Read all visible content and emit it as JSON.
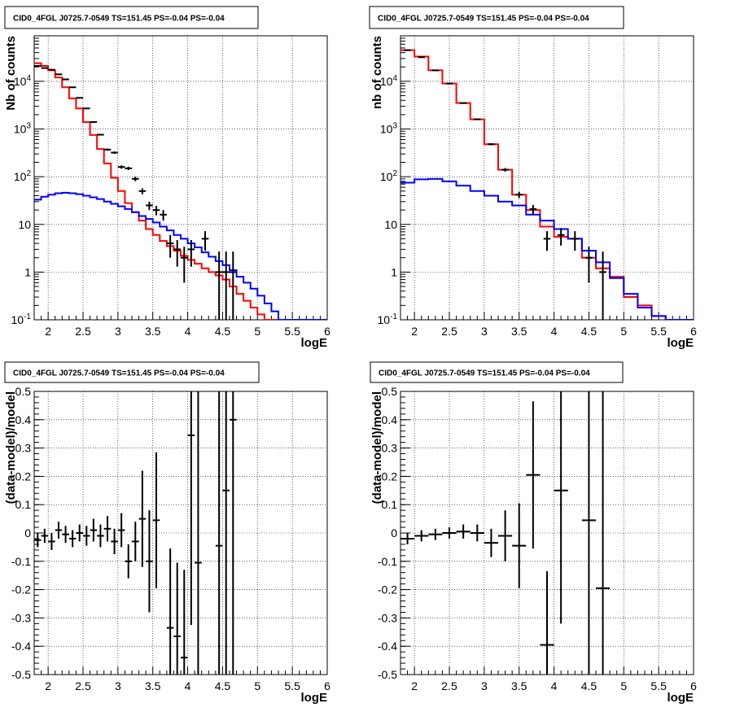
{
  "chart_data": [
    {
      "type": "line",
      "title": "CID0_4FGL J0725.7-0549 TS=151.45 PS=-0.04 PS=-0.04",
      "xlabel": "logE",
      "ylabel": "Nb of counts",
      "xlim": [
        1.8,
        6.0
      ],
      "ylim": [
        0.1,
        90000
      ],
      "yscale": "log",
      "grid": true,
      "x_ticks": [
        "2",
        "2.5",
        "3",
        "3.5",
        "4",
        "4.5",
        "5",
        "5.5",
        "6"
      ],
      "y_ticks": [
        "10^-1",
        "1",
        "10",
        "10^2",
        "10^3",
        "10^4"
      ],
      "series": [
        {
          "color": "#ff0000",
          "style": "step",
          "edges": [
            1.8,
            1.9,
            2.0,
            2.1,
            2.2,
            2.3,
            2.4,
            2.5,
            2.6,
            2.7,
            2.8,
            2.9,
            3.0,
            3.1,
            3.2,
            3.3,
            3.4,
            3.5,
            3.6,
            3.7,
            3.8,
            3.9,
            4.0,
            4.1,
            4.2,
            4.3,
            4.4,
            4.5,
            4.6,
            4.7,
            4.8,
            4.9,
            5.0,
            5.1,
            5.2,
            5.3,
            5.4,
            5.5,
            5.6,
            5.7,
            5.8,
            5.9,
            6.0
          ],
          "values": [
            24000,
            21000,
            17000,
            12000,
            7500,
            4400,
            2700,
            1400,
            750,
            380,
            190,
            95,
            50,
            28,
            18,
            12,
            8,
            6,
            4.5,
            3.5,
            2.8,
            2.2,
            1.8,
            1.5,
            1.2,
            1.0,
            0.85,
            0.7,
            0.5,
            0.35,
            0.25,
            0.18,
            0.13,
            0.1,
            0.1,
            0.1,
            0.1,
            0.1,
            0.1,
            0.1,
            0.1,
            0.1
          ]
        },
        {
          "color": "#0000ff",
          "style": "step",
          "edges": [
            1.8,
            1.9,
            2.0,
            2.1,
            2.2,
            2.3,
            2.4,
            2.5,
            2.6,
            2.7,
            2.8,
            2.9,
            3.0,
            3.1,
            3.2,
            3.3,
            3.4,
            3.5,
            3.6,
            3.7,
            3.8,
            3.9,
            4.0,
            4.1,
            4.2,
            4.3,
            4.4,
            4.5,
            4.6,
            4.7,
            4.8,
            4.9,
            5.0,
            5.1,
            5.2,
            5.3,
            5.4,
            5.5,
            5.6,
            5.7,
            5.8,
            5.9,
            6.0
          ],
          "values": [
            33,
            38,
            42,
            45,
            46,
            45,
            43,
            40,
            37,
            34,
            30,
            27,
            24,
            21,
            18,
            15,
            13,
            11,
            9,
            7.5,
            6,
            5,
            4,
            3.3,
            2.6,
            2.1,
            1.7,
            1.4,
            1.1,
            0.8,
            0.6,
            0.45,
            0.32,
            0.22,
            0.15,
            0.1,
            0.1,
            0.1,
            0.1,
            0.1,
            0.1,
            0.1
          ]
        }
      ],
      "points": [
        {
          "x": 1.85,
          "y": 21000,
          "yerr_lo": 150,
          "yerr_hi": 150
        },
        {
          "x": 1.95,
          "y": 19000,
          "yerr_lo": 140,
          "yerr_hi": 140
        },
        {
          "x": 2.05,
          "y": 17500,
          "yerr_lo": 130,
          "yerr_hi": 130
        },
        {
          "x": 2.15,
          "y": 14000,
          "yerr_lo": 120,
          "yerr_hi": 120
        },
        {
          "x": 2.25,
          "y": 11000,
          "yerr_lo": 105,
          "yerr_hi": 105
        },
        {
          "x": 2.35,
          "y": 7500,
          "yerr_lo": 87,
          "yerr_hi": 87
        },
        {
          "x": 2.45,
          "y": 4500,
          "yerr_lo": 67,
          "yerr_hi": 67
        },
        {
          "x": 2.55,
          "y": 2700,
          "yerr_lo": 52,
          "yerr_hi": 52
        },
        {
          "x": 2.65,
          "y": 1400,
          "yerr_lo": 37,
          "yerr_hi": 37
        },
        {
          "x": 2.75,
          "y": 760,
          "yerr_lo": 28,
          "yerr_hi": 28
        },
        {
          "x": 2.85,
          "y": 370,
          "yerr_lo": 19,
          "yerr_hi": 19
        },
        {
          "x": 2.95,
          "y": 320,
          "yerr_lo": 18,
          "yerr_hi": 18
        },
        {
          "x": 3.05,
          "y": 160,
          "yerr_lo": 13,
          "yerr_hi": 13
        },
        {
          "x": 3.15,
          "y": 150,
          "yerr_lo": 12,
          "yerr_hi": 12
        },
        {
          "x": 3.25,
          "y": 90,
          "yerr_lo": 9.5,
          "yerr_hi": 9.5
        },
        {
          "x": 3.35,
          "y": 50,
          "yerr_lo": 7,
          "yerr_hi": 7
        },
        {
          "x": 3.45,
          "y": 25,
          "yerr_lo": 5,
          "yerr_hi": 5
        },
        {
          "x": 3.55,
          "y": 20,
          "yerr_lo": 4.5,
          "yerr_hi": 4.5
        },
        {
          "x": 3.65,
          "y": 16,
          "yerr_lo": 4,
          "yerr_hi": 4
        },
        {
          "x": 3.75,
          "y": 4,
          "yerr_lo": 2,
          "yerr_hi": 2
        },
        {
          "x": 3.85,
          "y": 3,
          "yerr_lo": 1.7,
          "yerr_hi": 1.7
        },
        {
          "x": 3.95,
          "y": 2,
          "yerr_lo": 1.4,
          "yerr_hi": 1.4
        },
        {
          "x": 4.05,
          "y": 3,
          "yerr_lo": 1.7,
          "yerr_hi": 1.7
        },
        {
          "x": 4.25,
          "y": 5,
          "yerr_lo": 2.2,
          "yerr_hi": 2.2
        },
        {
          "x": 4.45,
          "y": 1,
          "yerr_lo": 0.99,
          "yerr_hi": 1.7
        },
        {
          "x": 4.55,
          "y": 1,
          "yerr_lo": 0.99,
          "yerr_hi": 1.7
        },
        {
          "x": 4.65,
          "y": 1,
          "yerr_lo": 0.99,
          "yerr_hi": 1.7
        }
      ]
    },
    {
      "type": "line",
      "title": "CID0_4FGL J0725.7-0549 TS=151.45 PS=-0.04 PS=-0.04",
      "xlabel": "logE",
      "ylabel": "nb of counts",
      "xlim": [
        1.8,
        6.0
      ],
      "ylim": [
        0.1,
        90000
      ],
      "yscale": "log",
      "grid": true,
      "x_ticks": [
        "2",
        "2.5",
        "3",
        "3.5",
        "4",
        "4.5",
        "5",
        "5.5",
        "6"
      ],
      "y_ticks": [
        "10^-1",
        "1",
        "10",
        "10^2",
        "10^3",
        "10^4"
      ],
      "series": [
        {
          "color": "#ff0000",
          "style": "step",
          "edges": [
            1.8,
            2.0,
            2.2,
            2.4,
            2.6,
            2.8,
            3.0,
            3.2,
            3.4,
            3.6,
            3.8,
            4.0,
            4.2,
            4.4,
            4.6,
            4.8,
            5.0,
            5.2,
            5.4,
            5.6,
            5.8,
            6.0
          ],
          "values": [
            45000,
            33000,
            17000,
            9000,
            3500,
            1600,
            480,
            140,
            42,
            20,
            9,
            5.5,
            5,
            2,
            1.2,
            0.8,
            0.3,
            0.2,
            0.12,
            0.1,
            0.1
          ]
        },
        {
          "color": "#0000ff",
          "style": "step",
          "edges": [
            1.8,
            2.0,
            2.2,
            2.4,
            2.6,
            2.8,
            3.0,
            3.2,
            3.4,
            3.6,
            3.8,
            4.0,
            4.2,
            4.4,
            4.6,
            4.8,
            5.0,
            5.2,
            5.4,
            5.6,
            5.8,
            6.0
          ],
          "values": [
            75,
            88,
            90,
            80,
            65,
            50,
            40,
            30,
            25,
            16,
            12,
            8,
            5,
            2.8,
            1.6,
            0.75,
            0.35,
            0.18,
            0.12,
            0.1,
            0.1
          ]
        }
      ],
      "points": [
        {
          "x": 1.9,
          "y": 45000,
          "yerr_lo": 210,
          "yerr_hi": 210
        },
        {
          "x": 2.1,
          "y": 32000,
          "yerr_lo": 180,
          "yerr_hi": 180
        },
        {
          "x": 2.3,
          "y": 17000,
          "yerr_lo": 130,
          "yerr_hi": 130
        },
        {
          "x": 2.5,
          "y": 9000,
          "yerr_lo": 95,
          "yerr_hi": 95
        },
        {
          "x": 2.7,
          "y": 3500,
          "yerr_lo": 60,
          "yerr_hi": 60
        },
        {
          "x": 2.9,
          "y": 1600,
          "yerr_lo": 40,
          "yerr_hi": 40
        },
        {
          "x": 3.1,
          "y": 480,
          "yerr_lo": 22,
          "yerr_hi": 22
        },
        {
          "x": 3.3,
          "y": 140,
          "yerr_lo": 12,
          "yerr_hi": 12
        },
        {
          "x": 3.5,
          "y": 42,
          "yerr_lo": 6.5,
          "yerr_hi": 6.5
        },
        {
          "x": 3.7,
          "y": 21,
          "yerr_lo": 4.6,
          "yerr_hi": 4.6
        },
        {
          "x": 3.9,
          "y": 5,
          "yerr_lo": 2.2,
          "yerr_hi": 2.2
        },
        {
          "x": 4.1,
          "y": 6,
          "yerr_lo": 2.4,
          "yerr_hi": 2.4
        },
        {
          "x": 4.3,
          "y": 5,
          "yerr_lo": 2.2,
          "yerr_hi": 2.2
        },
        {
          "x": 4.5,
          "y": 2,
          "yerr_lo": 1.4,
          "yerr_hi": 1.4
        },
        {
          "x": 4.7,
          "y": 1,
          "yerr_lo": 0.99,
          "yerr_hi": 1.7
        }
      ]
    },
    {
      "type": "scatter",
      "title": "CID0_4FGL J0725.7-0549 TS=151.45 PS=-0.04 PS=-0.04",
      "xlabel": "logE",
      "ylabel": "(data-model)/model",
      "xlim": [
        1.8,
        6.0
      ],
      "ylim": [
        -0.5,
        0.5
      ],
      "grid": true,
      "x_ticks": [
        "2",
        "2.5",
        "3",
        "3.5",
        "4",
        "4.5",
        "5",
        "5.5",
        "6"
      ],
      "y_ticks": [
        "-0.5",
        "-0.4",
        "-0.3",
        "-0.2",
        "-0.1",
        "0",
        "0.1",
        "0.2",
        "0.3",
        "0.4",
        "0.5"
      ],
      "points": [
        {
          "x": 1.85,
          "y": -0.025,
          "err": 0.025,
          "xerr": 0.05
        },
        {
          "x": 1.95,
          "y": -0.01,
          "err": 0.025,
          "xerr": 0.05
        },
        {
          "x": 2.05,
          "y": -0.03,
          "err": 0.03,
          "xerr": 0.05
        },
        {
          "x": 2.15,
          "y": 0.01,
          "err": 0.03,
          "xerr": 0.05
        },
        {
          "x": 2.25,
          "y": -0.005,
          "err": 0.03,
          "xerr": 0.05
        },
        {
          "x": 2.35,
          "y": -0.02,
          "err": 0.03,
          "xerr": 0.05
        },
        {
          "x": 2.45,
          "y": 0.0,
          "err": 0.03,
          "xerr": 0.05
        },
        {
          "x": 2.55,
          "y": -0.01,
          "err": 0.035,
          "xerr": 0.05
        },
        {
          "x": 2.65,
          "y": 0.01,
          "err": 0.04,
          "xerr": 0.05
        },
        {
          "x": 2.75,
          "y": -0.01,
          "err": 0.04,
          "xerr": 0.05
        },
        {
          "x": 2.85,
          "y": 0.015,
          "err": 0.045,
          "xerr": 0.05
        },
        {
          "x": 2.95,
          "y": -0.03,
          "err": 0.045,
          "xerr": 0.05
        },
        {
          "x": 3.05,
          "y": 0.01,
          "err": 0.06,
          "xerr": 0.05
        },
        {
          "x": 3.15,
          "y": -0.1,
          "err": 0.06,
          "xerr": 0.05
        },
        {
          "x": 3.25,
          "y": -0.03,
          "err": 0.07,
          "xerr": 0.05
        },
        {
          "x": 3.35,
          "y": 0.05,
          "err": 0.17,
          "xerr": 0.05
        },
        {
          "x": 3.45,
          "y": -0.1,
          "err": 0.18,
          "xerr": 0.05
        },
        {
          "x": 3.55,
          "y": 0.045,
          "err": 0.24,
          "xerr": 0.05
        },
        {
          "x": 3.75,
          "y": -0.335,
          "err": 0.28,
          "xerr": 0.05
        },
        {
          "x": 3.85,
          "y": -0.365,
          "err": 0.26,
          "xerr": 0.05
        },
        {
          "x": 3.95,
          "y": -0.44,
          "err": 0.31,
          "xerr": 0.05
        },
        {
          "x": 4.05,
          "y": 0.345,
          "err": 0.67,
          "xerr": 0.05
        },
        {
          "x": 4.15,
          "y": -0.105,
          "err": 0.95,
          "xerr": 0.05
        },
        {
          "x": 4.45,
          "y": -0.045,
          "err": 1.0,
          "xerr": 0.05
        },
        {
          "x": 4.55,
          "y": 0.15,
          "err": 1.0,
          "xerr": 0.05
        },
        {
          "x": 4.65,
          "y": 0.4,
          "err": 1.4,
          "xerr": 0.05
        }
      ]
    },
    {
      "type": "scatter",
      "title": "CID0_4FGL J0725.7-0549 TS=151.45 PS=-0.04 PS=-0.04",
      "xlabel": "logE",
      "ylabel": "(data-model)/model",
      "xlim": [
        1.8,
        6.0
      ],
      "ylim": [
        -0.5,
        0.5
      ],
      "grid": true,
      "x_ticks": [
        "2",
        "2.5",
        "3",
        "3.5",
        "4",
        "4.5",
        "5",
        "5.5",
        "6"
      ],
      "y_ticks": [
        "-0.5",
        "-0.4",
        "-0.3",
        "-0.2",
        "-0.1",
        "0",
        "0.1",
        "0.2",
        "0.3",
        "0.4",
        "0.5"
      ],
      "points": [
        {
          "x": 1.9,
          "y": -0.02,
          "err": 0.02,
          "xerr": 0.1
        },
        {
          "x": 2.1,
          "y": -0.01,
          "err": 0.02,
          "xerr": 0.1
        },
        {
          "x": 2.3,
          "y": -0.005,
          "err": 0.02,
          "xerr": 0.1
        },
        {
          "x": 2.5,
          "y": 0.0,
          "err": 0.02,
          "xerr": 0.1
        },
        {
          "x": 2.7,
          "y": 0.005,
          "err": 0.025,
          "xerr": 0.1
        },
        {
          "x": 2.9,
          "y": 0.0,
          "err": 0.03,
          "xerr": 0.1
        },
        {
          "x": 3.1,
          "y": -0.035,
          "err": 0.05,
          "xerr": 0.1
        },
        {
          "x": 3.3,
          "y": -0.01,
          "err": 0.09,
          "xerr": 0.1
        },
        {
          "x": 3.5,
          "y": -0.045,
          "err": 0.15,
          "xerr": 0.1
        },
        {
          "x": 3.7,
          "y": 0.205,
          "err": 0.26,
          "xerr": 0.1
        },
        {
          "x": 3.9,
          "y": -0.395,
          "err": 0.26,
          "xerr": 0.1
        },
        {
          "x": 4.1,
          "y": 0.15,
          "err": 0.47,
          "xerr": 0.1
        },
        {
          "x": 4.5,
          "y": 0.045,
          "err": 0.75,
          "xerr": 0.1
        },
        {
          "x": 4.7,
          "y": -0.195,
          "err": 0.9,
          "xerr": 0.1
        }
      ]
    }
  ]
}
